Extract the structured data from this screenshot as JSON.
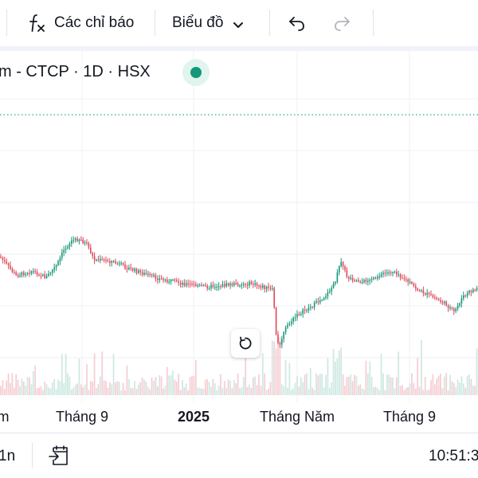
{
  "toolbar": {
    "indicators_icon": "function-fx-icon",
    "indicators_label": "Các chỉ báo",
    "chart_type_label": "Biểu đồ",
    "chart_type_icon": "chevron-down-icon",
    "undo_icon": "undo-icon",
    "redo_icon": "redo-icon"
  },
  "legend": {
    "symbol_text": "m - CTCP · 1D · HSX",
    "status_color": "#14977a",
    "status_label": "market-open-dot"
  },
  "colors": {
    "up": "#14977a",
    "down": "#e0485a",
    "grid": "#eef0f4",
    "dotted_line": "#26a69a"
  },
  "time_axis": {
    "labels": [
      "m",
      "Tháng 9",
      "2025",
      "Tháng Năm",
      "Tháng 9"
    ],
    "bold_label": "2025"
  },
  "bottom_bar": {
    "range_label": "1n",
    "goto_date_icon": "calendar-arrow-icon",
    "clock_text": "10:51:3"
  },
  "reset_icon": "rotate-reset-icon"
}
